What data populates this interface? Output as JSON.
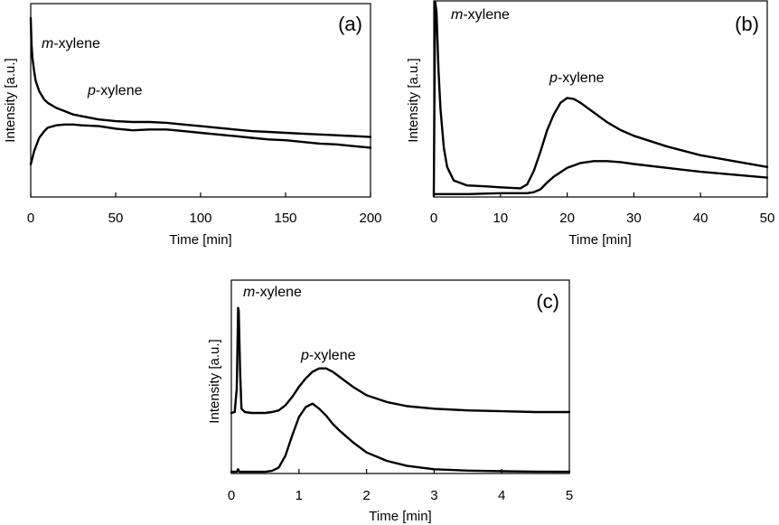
{
  "chart_data": [
    {
      "type": "line",
      "panel_label": "(a)",
      "xlabel": "Time [min]",
      "ylabel": "Intensity  [a.u.]",
      "xlim": [
        0,
        200
      ],
      "ylim": [
        0,
        1
      ],
      "y_ticks_shown": false,
      "grid": false,
      "x_ticks": [
        {
          "value": 0,
          "label": "0"
        },
        {
          "value": 50,
          "label": "50"
        },
        {
          "value": 100,
          "label": "100"
        },
        {
          "value": 150,
          "label": "150"
        },
        {
          "value": 200,
          "label": "200"
        }
      ],
      "series": [
        {
          "label_italic": "m",
          "label_rest": "-xylene",
          "x": [
            0,
            0.5,
            1,
            2,
            3,
            5,
            8,
            10,
            15,
            20,
            25,
            30,
            40,
            50,
            60,
            70,
            80,
            90,
            100,
            110,
            120,
            130,
            140,
            150,
            160,
            170,
            180,
            190,
            200
          ],
          "y": [
            1.0,
            0.84,
            0.76,
            0.68,
            0.62,
            0.56,
            0.51,
            0.49,
            0.46,
            0.44,
            0.42,
            0.41,
            0.39,
            0.38,
            0.375,
            0.375,
            0.37,
            0.36,
            0.35,
            0.34,
            0.33,
            0.32,
            0.315,
            0.31,
            0.305,
            0.3,
            0.295,
            0.29,
            0.285
          ]
        },
        {
          "label_italic": "p",
          "label_rest": "-xylene",
          "x": [
            0,
            2,
            5,
            8,
            10,
            15,
            20,
            25,
            30,
            40,
            50,
            60,
            70,
            80,
            90,
            100,
            110,
            120,
            130,
            140,
            150,
            160,
            170,
            180,
            190,
            200
          ],
          "y": [
            0.12,
            0.2,
            0.28,
            0.32,
            0.34,
            0.355,
            0.36,
            0.36,
            0.355,
            0.35,
            0.335,
            0.325,
            0.33,
            0.33,
            0.32,
            0.31,
            0.3,
            0.29,
            0.28,
            0.27,
            0.265,
            0.255,
            0.245,
            0.24,
            0.23,
            0.22
          ]
        }
      ]
    },
    {
      "type": "line",
      "panel_label": "(b)",
      "xlabel": "Time [min]",
      "ylabel": "Intensity [a.u.]",
      "xlim": [
        0,
        50
      ],
      "ylim": [
        0,
        1
      ],
      "y_ticks_shown": false,
      "grid": false,
      "x_ticks": [
        {
          "value": 0,
          "label": "0"
        },
        {
          "value": 10,
          "label": "10"
        },
        {
          "value": 20,
          "label": "20"
        },
        {
          "value": 30,
          "label": "30"
        },
        {
          "value": 40,
          "label": "40"
        },
        {
          "value": 50,
          "label": "50"
        }
      ],
      "series": [
        {
          "label_italic": "m",
          "label_rest": "-xylene",
          "x": [
            0,
            0.2,
            0.4,
            0.7,
            1,
            1.5,
            2,
            3,
            5,
            8,
            10,
            13,
            14,
            15,
            16,
            17,
            18,
            19,
            20,
            21,
            22,
            24,
            26,
            28,
            30,
            35,
            40,
            45,
            50
          ],
          "y": [
            0.0,
            1.0,
            0.95,
            0.65,
            0.45,
            0.25,
            0.15,
            0.08,
            0.055,
            0.05,
            0.045,
            0.04,
            0.06,
            0.13,
            0.23,
            0.34,
            0.42,
            0.48,
            0.505,
            0.5,
            0.48,
            0.43,
            0.38,
            0.34,
            0.31,
            0.255,
            0.21,
            0.18,
            0.15
          ]
        },
        {
          "label_italic": "p",
          "label_rest": "-xylene",
          "x": [
            0,
            5,
            10,
            14,
            15,
            16,
            17,
            18,
            20,
            22,
            24,
            26,
            28,
            30,
            35,
            40,
            45,
            50
          ],
          "y": [
            0.01,
            0.01,
            0.015,
            0.015,
            0.02,
            0.035,
            0.07,
            0.1,
            0.145,
            0.17,
            0.18,
            0.18,
            0.175,
            0.165,
            0.145,
            0.125,
            0.11,
            0.095
          ]
        }
      ]
    },
    {
      "type": "line",
      "panel_label": "(c)",
      "xlabel": "Time [min]",
      "ylabel": "Intensity [a.u.]",
      "xlim": [
        0,
        5
      ],
      "ylim": [
        0,
        1
      ],
      "y_ticks_shown": false,
      "grid": false,
      "x_ticks": [
        {
          "value": 0,
          "label": "0"
        },
        {
          "value": 1,
          "label": "1"
        },
        {
          "value": 2,
          "label": "2"
        },
        {
          "value": 3,
          "label": "3"
        },
        {
          "value": 4,
          "label": "4"
        },
        {
          "value": 5,
          "label": "5"
        }
      ],
      "series": [
        {
          "label_italic": "m",
          "label_rest": "-xylene",
          "x": [
            0,
            0.05,
            0.08,
            0.1,
            0.11,
            0.13,
            0.15,
            0.2,
            0.3,
            0.5,
            0.6,
            0.7,
            0.8,
            0.9,
            1.0,
            1.1,
            1.2,
            1.3,
            1.4,
            1.5,
            1.6,
            1.8,
            2.0,
            2.3,
            2.6,
            3.0,
            3.5,
            4.0,
            4.5,
            5.0
          ],
          "y": [
            0.355,
            0.36,
            0.5,
            0.98,
            0.96,
            0.6,
            0.38,
            0.36,
            0.355,
            0.355,
            0.36,
            0.37,
            0.4,
            0.45,
            0.51,
            0.56,
            0.6,
            0.62,
            0.62,
            0.6,
            0.57,
            0.51,
            0.46,
            0.42,
            0.395,
            0.38,
            0.37,
            0.365,
            0.36,
            0.36
          ]
        },
        {
          "label_italic": "p",
          "label_rest": "-xylene",
          "x": [
            0,
            0.08,
            0.1,
            0.12,
            0.2,
            0.5,
            0.6,
            0.7,
            0.8,
            0.9,
            1.0,
            1.1,
            1.2,
            1.3,
            1.4,
            1.5,
            1.6,
            1.8,
            2.0,
            2.3,
            2.6,
            3.0,
            3.5,
            4.0,
            4.5,
            5.0
          ],
          "y": [
            0.005,
            0.005,
            0.02,
            0.005,
            0.005,
            0.005,
            0.01,
            0.03,
            0.1,
            0.22,
            0.33,
            0.39,
            0.41,
            0.38,
            0.34,
            0.29,
            0.25,
            0.18,
            0.12,
            0.07,
            0.04,
            0.02,
            0.012,
            0.008,
            0.006,
            0.005
          ]
        }
      ]
    }
  ]
}
